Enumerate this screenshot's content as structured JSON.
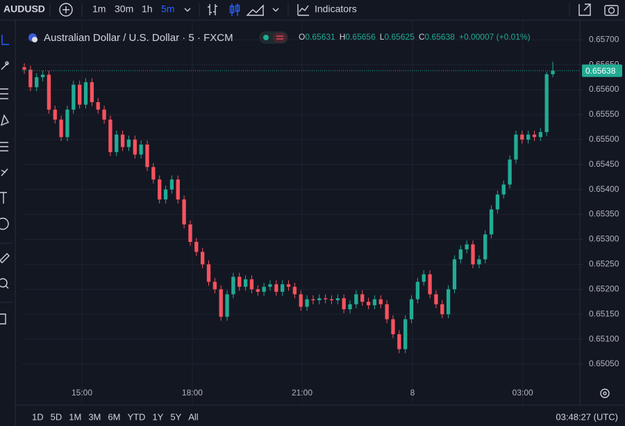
{
  "toolbar": {
    "symbol": "AUDUSD",
    "intervals": [
      "1m",
      "30m",
      "1h",
      "5m"
    ],
    "indicators": "Indicators"
  },
  "chart_data": {
    "type": "candlestick",
    "title": "Australian Dollar / U.S. Dollar · 5 · FXCM",
    "legend_labels": [
      "O",
      "H",
      "L",
      "C"
    ],
    "change": "+0.00007 (+0.01%)",
    "up_color": "#22ab94",
    "down_color": "#f7525f",
    "grid": true,
    "open": [
      0.65645,
      0.6564,
      0.65605,
      0.65625,
      0.6563,
      0.6556,
      0.6554,
      0.65505,
      0.6556,
      0.6561,
      0.6557,
      0.65615,
      0.65575,
      0.6556,
      0.6554,
      0.65475,
      0.6551,
      0.65485,
      0.655,
      0.6547,
      0.6549,
      0.65445,
      0.6542,
      0.6538,
      0.654,
      0.6542,
      0.6538,
      0.6533,
      0.65295,
      0.65275,
      0.6525,
      0.65215,
      0.652,
      0.65145,
      0.6519,
      0.65225,
      0.65205,
      0.6522,
      0.652,
      0.65195,
      0.65205,
      0.6521,
      0.65195,
      0.6521,
      0.65205,
      0.6519,
      0.65165,
      0.6518,
      0.65178,
      0.65182,
      0.6518,
      0.65178,
      0.65182,
      0.6516,
      0.6517,
      0.6519,
      0.65175,
      0.65168,
      0.6518,
      0.6517,
      0.6514,
      0.6511,
      0.6508,
      0.6514,
      0.6518,
      0.65215,
      0.6523,
      0.6519,
      0.6517,
      0.6515,
      0.652,
      0.6526,
      0.6528,
      0.6529,
      0.6525,
      0.6526,
      0.6531,
      0.6536,
      0.6539,
      0.6541,
      0.6546,
      0.6551,
      0.655,
      0.6551,
      0.65505,
      0.65515,
      0.65631
    ],
    "high": [
      0.65653,
      0.65648,
      0.65633,
      0.65638,
      0.65638,
      0.65568,
      0.65548,
      0.65568,
      0.65618,
      0.65618,
      0.65623,
      0.65623,
      0.65583,
      0.65568,
      0.65548,
      0.65518,
      0.65518,
      0.65508,
      0.65508,
      0.65498,
      0.65498,
      0.65453,
      0.65428,
      0.65408,
      0.65428,
      0.65428,
      0.65388,
      0.65338,
      0.65303,
      0.65283,
      0.65258,
      0.65223,
      0.65208,
      0.65198,
      0.65233,
      0.65233,
      0.65228,
      0.65228,
      0.65208,
      0.65213,
      0.65218,
      0.65218,
      0.65218,
      0.65218,
      0.65213,
      0.65198,
      0.65188,
      0.65188,
      0.6519,
      0.6519,
      0.65188,
      0.6519,
      0.6519,
      0.65178,
      0.65198,
      0.65198,
      0.65183,
      0.65188,
      0.65188,
      0.65178,
      0.65148,
      0.65118,
      0.65148,
      0.65188,
      0.65223,
      0.65238,
      0.65238,
      0.65198,
      0.65178,
      0.65208,
      0.65268,
      0.65288,
      0.65298,
      0.65298,
      0.65268,
      0.65318,
      0.65368,
      0.65398,
      0.65418,
      0.65468,
      0.65518,
      0.65518,
      0.65518,
      0.65518,
      0.65523,
      0.65636,
      0.65656
    ],
    "low": [
      0.65632,
      0.65597,
      0.65597,
      0.65617,
      0.65552,
      0.65532,
      0.65497,
      0.65497,
      0.65552,
      0.65562,
      0.65562,
      0.65567,
      0.65552,
      0.65532,
      0.65467,
      0.65467,
      0.65477,
      0.65477,
      0.65462,
      0.65462,
      0.65437,
      0.65412,
      0.65372,
      0.65372,
      0.65392,
      0.65372,
      0.65322,
      0.65287,
      0.65267,
      0.65242,
      0.65207,
      0.65192,
      0.65137,
      0.65137,
      0.65182,
      0.65197,
      0.65197,
      0.65192,
      0.65187,
      0.65187,
      0.65197,
      0.65187,
      0.65187,
      0.65197,
      0.65182,
      0.65157,
      0.65157,
      0.6517,
      0.6517,
      0.65172,
      0.6517,
      0.6517,
      0.65152,
      0.65152,
      0.65162,
      0.65167,
      0.6516,
      0.6516,
      0.65162,
      0.65132,
      0.65102,
      0.65072,
      0.65072,
      0.65132,
      0.65172,
      0.65207,
      0.65182,
      0.65162,
      0.65142,
      0.65142,
      0.65192,
      0.65252,
      0.65272,
      0.65242,
      0.65242,
      0.65252,
      0.65302,
      0.65352,
      0.65382,
      0.65402,
      0.65452,
      0.65492,
      0.65492,
      0.65497,
      0.65497,
      0.65507,
      0.65625
    ],
    "close": [
      0.6564,
      0.65605,
      0.65625,
      0.6563,
      0.6556,
      0.6554,
      0.65505,
      0.6556,
      0.6561,
      0.6557,
      0.65615,
      0.65575,
      0.6556,
      0.6554,
      0.65475,
      0.6551,
      0.65485,
      0.655,
      0.6547,
      0.6549,
      0.65445,
      0.6542,
      0.6538,
      0.654,
      0.6542,
      0.6538,
      0.6533,
      0.65295,
      0.65275,
      0.6525,
      0.65215,
      0.652,
      0.65145,
      0.6519,
      0.65225,
      0.65205,
      0.6522,
      0.652,
      0.65195,
      0.65205,
      0.6521,
      0.65195,
      0.6521,
      0.65205,
      0.6519,
      0.65165,
      0.6518,
      0.65178,
      0.65182,
      0.6518,
      0.65178,
      0.65182,
      0.6516,
      0.6517,
      0.6519,
      0.65175,
      0.65168,
      0.6518,
      0.6517,
      0.6514,
      0.6511,
      0.6508,
      0.6514,
      0.6518,
      0.65215,
      0.6523,
      0.6519,
      0.6517,
      0.6515,
      0.652,
      0.6526,
      0.6528,
      0.6529,
      0.6525,
      0.6526,
      0.6531,
      0.6536,
      0.6539,
      0.6541,
      0.6546,
      0.6551,
      0.655,
      0.6551,
      0.65505,
      0.65515,
      0.65631,
      0.65638
    ],
    "xlim": [
      -0.34,
      90.4
    ],
    "xticks": [
      {
        "value": 9.38,
        "label": "15:00"
      },
      {
        "value": 27.34,
        "label": "18:00"
      },
      {
        "value": 45.2,
        "label": "21:00"
      },
      {
        "value": 63.16,
        "label": "8"
      },
      {
        "value": 81.1,
        "label": "03:00"
      }
    ],
    "ylim": [
      0.64972,
      0.65724
    ],
    "yticks": [
      {
        "value": 0.657,
        "label": "0.65700"
      },
      {
        "value": 0.6565,
        "label": "0.65650"
      },
      {
        "value": 0.656,
        "label": "0.65600"
      },
      {
        "value": 0.6555,
        "label": "0.65550"
      },
      {
        "value": 0.655,
        "label": "0.65500"
      },
      {
        "value": 0.6545,
        "label": "0.65450"
      },
      {
        "value": 0.654,
        "label": "0.65400"
      },
      {
        "value": 0.6535,
        "label": "0.65350"
      },
      {
        "value": 0.653,
        "label": "0.65300"
      },
      {
        "value": 0.6525,
        "label": "0.65250"
      },
      {
        "value": 0.652,
        "label": "0.65200"
      },
      {
        "value": 0.6515,
        "label": "0.65150"
      },
      {
        "value": 0.651,
        "label": "0.65100"
      },
      {
        "value": 0.6505,
        "label": "0.65050"
      }
    ]
  },
  "footer": {
    "ranges": [
      "1D",
      "5D",
      "1M",
      "3M",
      "6M",
      "YTD",
      "1Y",
      "5Y",
      "All"
    ],
    "clock": "03:48:27 (UTC)"
  }
}
